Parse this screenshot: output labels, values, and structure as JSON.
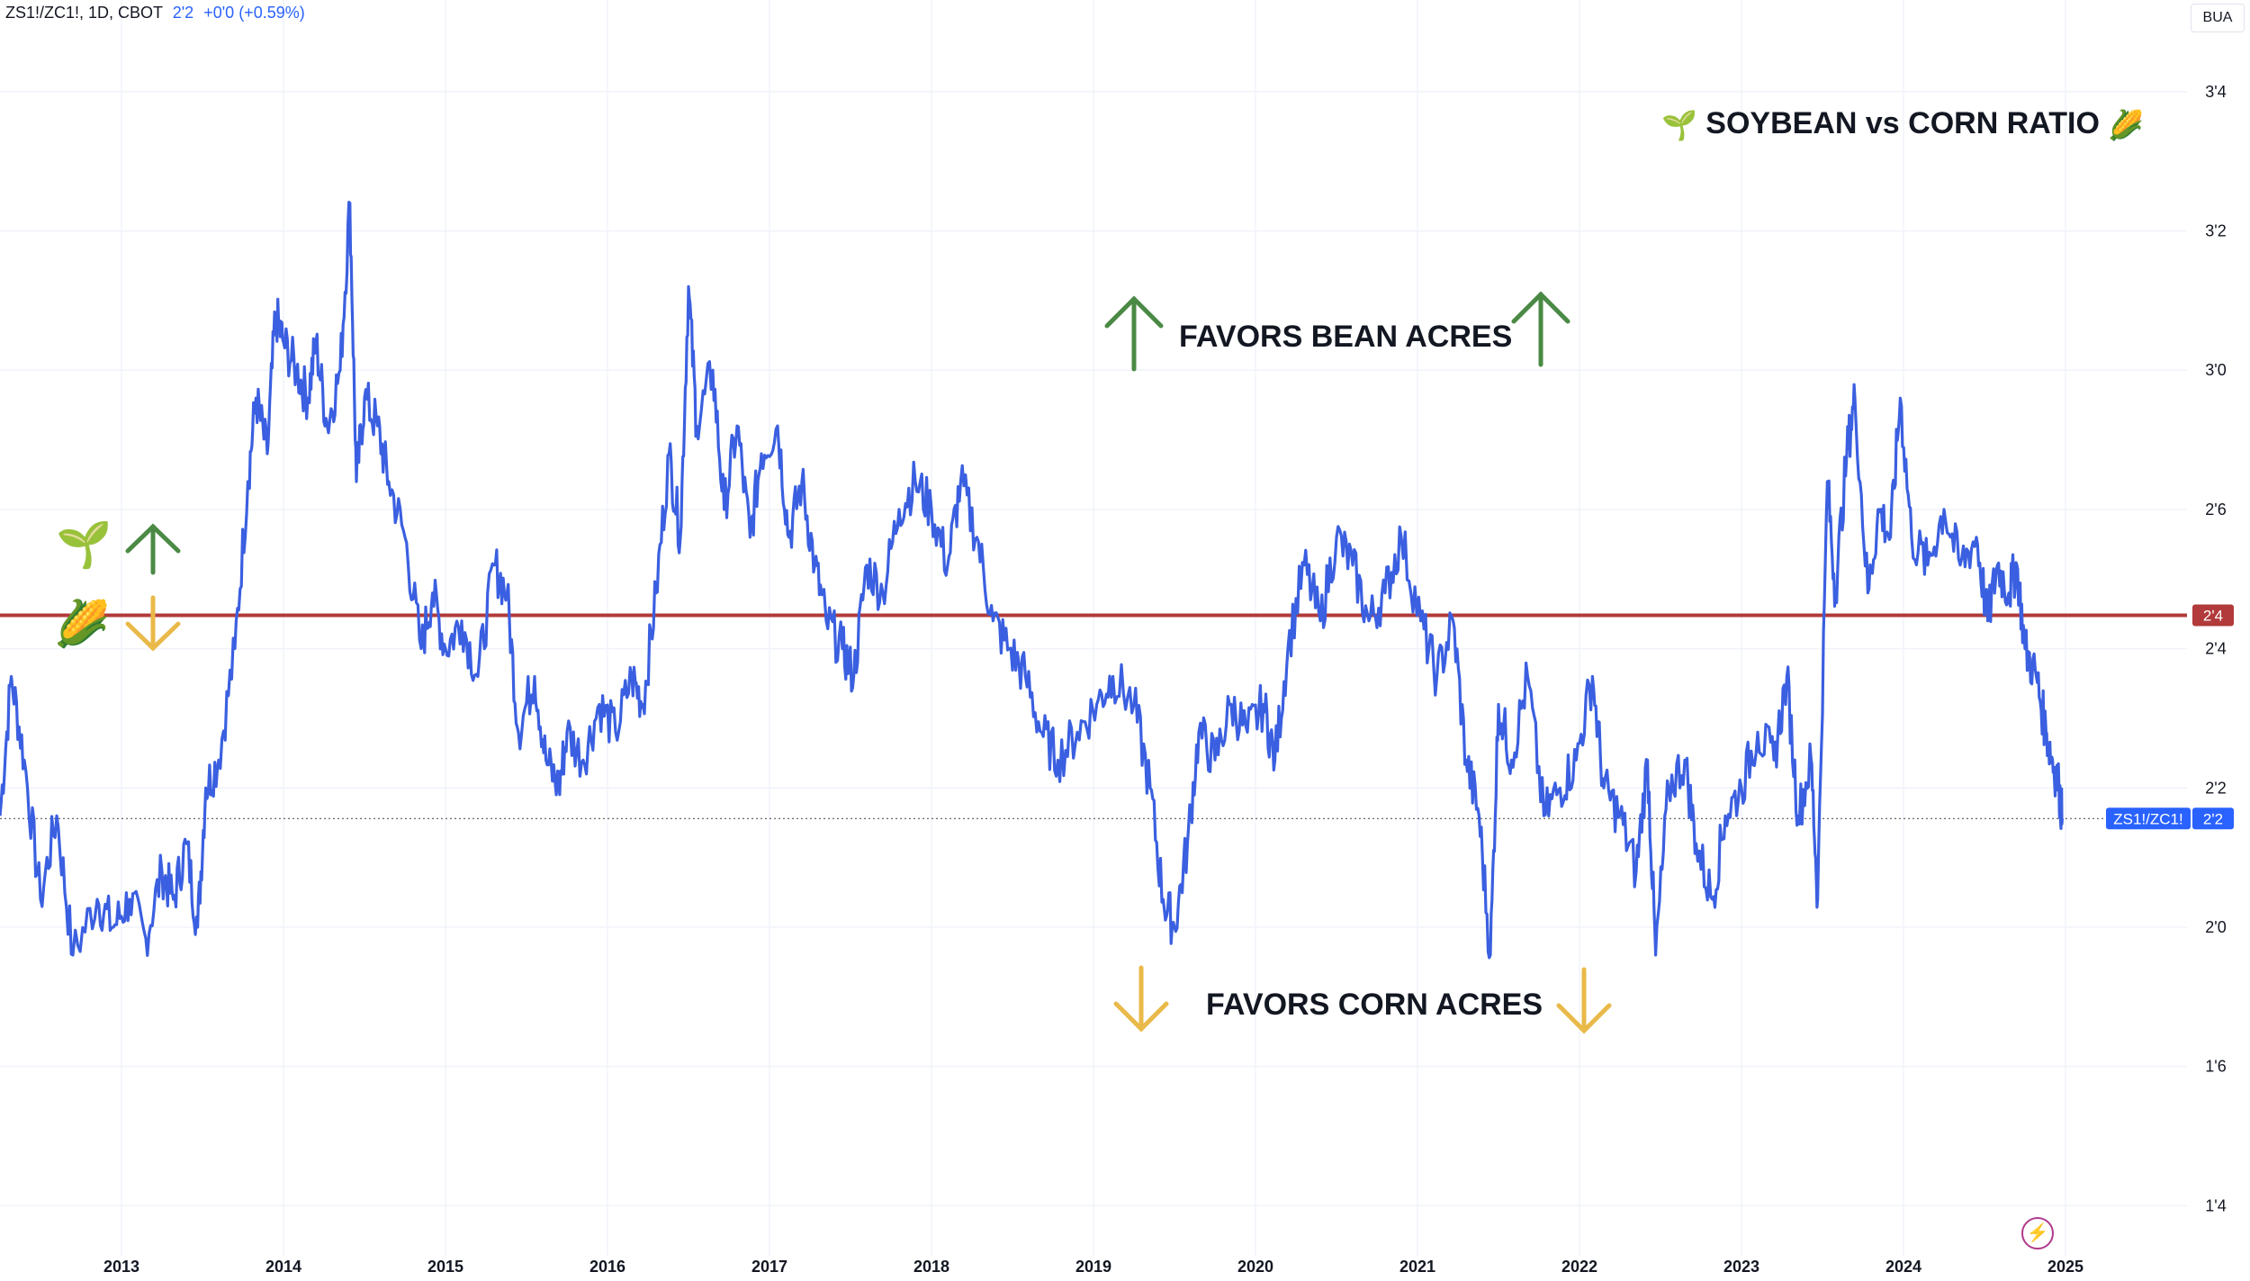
{
  "header": {
    "symbol": "ZS1!/ZC1!, 1D, CBOT",
    "last": "2ʹ2",
    "change": "+0ʹ0 (+0.59%)"
  },
  "unit_label": "BUA",
  "annotations": {
    "title": "SOYBEAN vs CORN RATIO",
    "title_icon_left": "🌱",
    "title_icon_right": "🌽",
    "bean_text": "FAVORS BEAN ACRES",
    "corn_text": "FAVORS CORN ACRES",
    "side_bean_icon": "🌱",
    "side_corn_icon": "🌽"
  },
  "colors": {
    "series": "#3a5fe0",
    "threshold": "#b23a3a",
    "bean_arrow": "#4b8a45",
    "corn_arrow": "#e9b949",
    "grid": "#f0f3fa",
    "axis_text": "#131722"
  },
  "chart_data": {
    "type": "line",
    "title": "SOYBEAN vs CORN RATIO",
    "x_axis_ticks": [
      "2013",
      "2014",
      "2015",
      "2016",
      "2017",
      "2018",
      "2019",
      "2020",
      "2021",
      "2022",
      "2023",
      "2024",
      "2025"
    ],
    "y_axis_ticks": [
      {
        "value": 3.5,
        "label": "3ʹ4"
      },
      {
        "value": 3.25,
        "label": "3ʹ2"
      },
      {
        "value": 3.0,
        "label": "3ʹ0"
      },
      {
        "value": 2.75,
        "label": "2ʹ6"
      },
      {
        "value": 2.5,
        "label": "2ʹ4"
      },
      {
        "value": 2.25,
        "label": "2ʹ2"
      },
      {
        "value": 2.0,
        "label": "2ʹ0"
      },
      {
        "value": 1.75,
        "label": "1ʹ6"
      },
      {
        "value": 1.5,
        "label": "1ʹ4"
      }
    ],
    "ylim": [
      1.41,
      3.6
    ],
    "xlim": [
      2012.25,
      2025.75
    ],
    "threshold": {
      "value": 2.56,
      "label": "2ʹ4"
    },
    "last_value": {
      "value": 2.195,
      "label": "2ʹ2",
      "series_label": "ZS1!/ZC1!"
    },
    "series": [
      {
        "name": "ZS1!/ZC1!",
        "points": [
          [
            2012.25,
            2.2
          ],
          [
            2012.32,
            2.45
          ],
          [
            2012.4,
            2.3
          ],
          [
            2012.5,
            2.05
          ],
          [
            2012.6,
            2.2
          ],
          [
            2012.7,
            1.95
          ],
          [
            2012.85,
            2.05
          ],
          [
            2012.95,
            2.0
          ],
          [
            2013.05,
            2.05
          ],
          [
            2013.15,
            1.98
          ],
          [
            2013.25,
            2.1
          ],
          [
            2013.32,
            2.05
          ],
          [
            2013.4,
            2.15
          ],
          [
            2013.47,
            2.0
          ],
          [
            2013.52,
            2.25
          ],
          [
            2013.6,
            2.3
          ],
          [
            2013.7,
            2.5
          ],
          [
            2013.78,
            2.8
          ],
          [
            2013.83,
            2.95
          ],
          [
            2013.9,
            2.85
          ],
          [
            2013.95,
            3.1
          ],
          [
            2014.0,
            3.05
          ],
          [
            2014.08,
            3.0
          ],
          [
            2014.15,
            2.95
          ],
          [
            2014.2,
            3.05
          ],
          [
            2014.27,
            2.9
          ],
          [
            2014.35,
            3.0
          ],
          [
            2014.41,
            3.3
          ],
          [
            2014.45,
            2.8
          ],
          [
            2014.5,
            2.95
          ],
          [
            2014.58,
            2.9
          ],
          [
            2014.65,
            2.8
          ],
          [
            2014.75,
            2.7
          ],
          [
            2014.85,
            2.5
          ],
          [
            2014.92,
            2.6
          ],
          [
            2015.0,
            2.5
          ],
          [
            2015.1,
            2.55
          ],
          [
            2015.2,
            2.45
          ],
          [
            2015.3,
            2.65
          ],
          [
            2015.38,
            2.6
          ],
          [
            2015.45,
            2.35
          ],
          [
            2015.55,
            2.45
          ],
          [
            2015.62,
            2.3
          ],
          [
            2015.7,
            2.25
          ],
          [
            2015.75,
            2.35
          ],
          [
            2015.85,
            2.3
          ],
          [
            2015.95,
            2.4
          ],
          [
            2016.05,
            2.35
          ],
          [
            2016.15,
            2.45
          ],
          [
            2016.22,
            2.4
          ],
          [
            2016.3,
            2.6
          ],
          [
            2016.38,
            2.85
          ],
          [
            2016.45,
            2.7
          ],
          [
            2016.5,
            3.15
          ],
          [
            2016.55,
            2.9
          ],
          [
            2016.65,
            3.0
          ],
          [
            2016.72,
            2.75
          ],
          [
            2016.8,
            2.9
          ],
          [
            2016.88,
            2.7
          ],
          [
            2016.95,
            2.85
          ],
          [
            2017.05,
            2.9
          ],
          [
            2017.12,
            2.7
          ],
          [
            2017.2,
            2.8
          ],
          [
            2017.28,
            2.65
          ],
          [
            2017.35,
            2.55
          ],
          [
            2017.45,
            2.5
          ],
          [
            2017.52,
            2.45
          ],
          [
            2017.6,
            2.65
          ],
          [
            2017.7,
            2.6
          ],
          [
            2017.8,
            2.75
          ],
          [
            2017.9,
            2.8
          ],
          [
            2018.0,
            2.75
          ],
          [
            2018.1,
            2.65
          ],
          [
            2018.18,
            2.8
          ],
          [
            2018.28,
            2.7
          ],
          [
            2018.38,
            2.55
          ],
          [
            2018.48,
            2.5
          ],
          [
            2018.58,
            2.45
          ],
          [
            2018.68,
            2.35
          ],
          [
            2018.78,
            2.3
          ],
          [
            2018.9,
            2.35
          ],
          [
            2019.02,
            2.4
          ],
          [
            2019.12,
            2.45
          ],
          [
            2019.25,
            2.4
          ],
          [
            2019.35,
            2.25
          ],
          [
            2019.43,
            2.05
          ],
          [
            2019.5,
            2.0
          ],
          [
            2019.58,
            2.15
          ],
          [
            2019.65,
            2.35
          ],
          [
            2019.75,
            2.3
          ],
          [
            2019.85,
            2.4
          ],
          [
            2019.95,
            2.35
          ],
          [
            2020.05,
            2.4
          ],
          [
            2020.12,
            2.3
          ],
          [
            2020.2,
            2.5
          ],
          [
            2020.3,
            2.65
          ],
          [
            2020.4,
            2.55
          ],
          [
            2020.5,
            2.7
          ],
          [
            2020.6,
            2.65
          ],
          [
            2020.7,
            2.55
          ],
          [
            2020.8,
            2.6
          ],
          [
            2020.9,
            2.7
          ],
          [
            2021.02,
            2.55
          ],
          [
            2021.12,
            2.45
          ],
          [
            2021.22,
            2.55
          ],
          [
            2021.3,
            2.3
          ],
          [
            2021.38,
            2.2
          ],
          [
            2021.45,
            1.95
          ],
          [
            2021.5,
            2.4
          ],
          [
            2021.58,
            2.3
          ],
          [
            2021.68,
            2.45
          ],
          [
            2021.78,
            2.2
          ],
          [
            2021.88,
            2.25
          ],
          [
            2021.98,
            2.3
          ],
          [
            2022.08,
            2.45
          ],
          [
            2022.15,
            2.25
          ],
          [
            2022.25,
            2.2
          ],
          [
            2022.35,
            2.1
          ],
          [
            2022.42,
            2.3
          ],
          [
            2022.47,
            1.95
          ],
          [
            2022.55,
            2.25
          ],
          [
            2022.65,
            2.3
          ],
          [
            2022.72,
            2.15
          ],
          [
            2022.82,
            2.05
          ],
          [
            2022.9,
            2.2
          ],
          [
            2023.0,
            2.25
          ],
          [
            2023.1,
            2.35
          ],
          [
            2023.2,
            2.3
          ],
          [
            2023.28,
            2.45
          ],
          [
            2023.35,
            2.2
          ],
          [
            2023.43,
            2.3
          ],
          [
            2023.47,
            2.05
          ],
          [
            2023.53,
            2.8
          ],
          [
            2023.58,
            2.6
          ],
          [
            2023.65,
            2.85
          ],
          [
            2023.7,
            2.95
          ],
          [
            2023.78,
            2.6
          ],
          [
            2023.85,
            2.75
          ],
          [
            2023.92,
            2.7
          ],
          [
            2023.98,
            2.95
          ],
          [
            2024.05,
            2.7
          ],
          [
            2024.15,
            2.65
          ],
          [
            2024.25,
            2.75
          ],
          [
            2024.35,
            2.65
          ],
          [
            2024.45,
            2.7
          ],
          [
            2024.52,
            2.55
          ],
          [
            2024.58,
            2.65
          ],
          [
            2024.65,
            2.6
          ],
          [
            2024.7,
            2.65
          ],
          [
            2024.75,
            2.5
          ],
          [
            2024.82,
            2.45
          ],
          [
            2024.88,
            2.35
          ],
          [
            2024.92,
            2.3
          ],
          [
            2024.96,
            2.25
          ],
          [
            2024.98,
            2.195
          ]
        ]
      }
    ]
  }
}
